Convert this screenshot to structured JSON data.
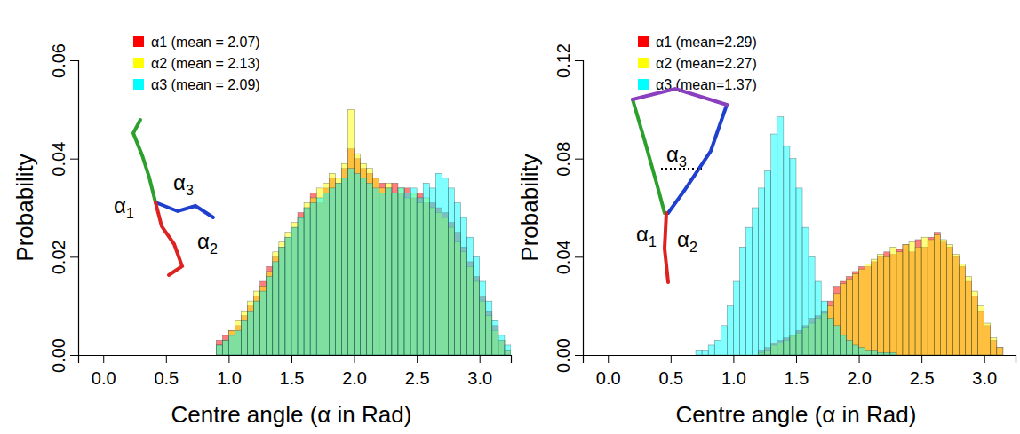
{
  "chart_data": [
    {
      "type": "histogram",
      "x_label": "Centre angle (α in Rad)",
      "y_label": "Probability",
      "legend": "top-left",
      "xlim": [
        -0.2,
        3.25
      ],
      "ylim": [
        0,
        0.06
      ],
      "xticks": [
        {
          "value": 0,
          "label": "0.0"
        },
        0.5,
        {
          "value": 1,
          "label": "1.0"
        },
        1.5,
        {
          "value": 2,
          "label": "2.0"
        },
        2.5,
        {
          "value": 3,
          "label": "3.0"
        }
      ],
      "yticks": [
        {
          "value": 0,
          "label": "0.00"
        },
        0.02,
        0.04,
        0.06
      ],
      "annotations": [
        "α1",
        "α2",
        "α3"
      ],
      "bins": [
        0.9,
        0.95,
        1,
        1.05,
        1.1,
        1.15,
        1.2,
        1.25,
        1.3,
        1.35,
        1.4,
        1.45,
        1.5,
        1.55,
        1.6,
        1.65,
        1.7,
        1.75,
        1.8,
        1.85,
        1.9,
        1.95,
        2,
        2.05,
        2.1,
        2.15,
        2.2,
        2.25,
        2.3,
        2.35,
        2.4,
        2.45,
        2.5,
        2.55,
        2.6,
        2.65,
        2.7,
        2.75,
        2.8,
        2.85,
        2.9,
        2.95,
        3,
        3.05,
        3.1,
        3.15,
        3.2,
        3.25
      ],
      "series": [
        {
          "name": "α1 (mean = 2.07)",
          "color": "#ff0000",
          "values": [
            0.003,
            0.004,
            0.005,
            0.006,
            0.008,
            0.01,
            0.012,
            0.015,
            0.018,
            0.02,
            0.022,
            0.024,
            0.026,
            0.029,
            0.03,
            0.033,
            0.031,
            0.034,
            0.036,
            0.035,
            0.038,
            0.042,
            0.04,
            0.038,
            0.037,
            0.036,
            0.035,
            0.034,
            0.035,
            0.033,
            0.034,
            0.032,
            0.033,
            0.031,
            0.031,
            0.03,
            0.029,
            0.027,
            0.025,
            0.022,
            0.019,
            0.016,
            0.012,
            0.009,
            0.006,
            0.003,
            0.001
          ]
        },
        {
          "name": "α2 (mean = 2.13)",
          "color": "#ffff00",
          "values": [
            0.002,
            0.003,
            0.005,
            0.007,
            0.009,
            0.011,
            0.013,
            0.014,
            0.017,
            0.021,
            0.023,
            0.025,
            0.027,
            0.028,
            0.031,
            0.032,
            0.034,
            0.035,
            0.037,
            0.036,
            0.039,
            0.05,
            0.041,
            0.039,
            0.038,
            0.036,
            0.034,
            0.035,
            0.033,
            0.034,
            0.032,
            0.033,
            0.031,
            0.032,
            0.03,
            0.029,
            0.028,
            0.026,
            0.023,
            0.021,
            0.018,
            0.015,
            0.011,
            0.008,
            0.005,
            0.003,
            0.001
          ]
        },
        {
          "name": "α3 (mean = 2.09)",
          "color": "#00ffff",
          "values": [
            0.002,
            0.003,
            0.004,
            0.005,
            0.007,
            0.009,
            0.011,
            0.013,
            0.016,
            0.019,
            0.022,
            0.024,
            0.026,
            0.028,
            0.03,
            0.031,
            0.032,
            0.033,
            0.034,
            0.035,
            0.036,
            0.038,
            0.037,
            0.036,
            0.035,
            0.034,
            0.033,
            0.034,
            0.033,
            0.034,
            0.033,
            0.034,
            0.032,
            0.035,
            0.034,
            0.037,
            0.036,
            0.034,
            0.031,
            0.028,
            0.024,
            0.02,
            0.015,
            0.011,
            0.007,
            0.004,
            0.002
          ]
        }
      ]
    },
    {
      "type": "histogram",
      "x_label": "Centre angle (α in Rad)",
      "y_label": "Probability",
      "legend": "top-left",
      "xlim": [
        -0.2,
        3.25
      ],
      "ylim": [
        0,
        0.12
      ],
      "xticks": [
        {
          "value": 0,
          "label": "0.0"
        },
        0.5,
        {
          "value": 1,
          "label": "1.0"
        },
        1.5,
        {
          "value": 2,
          "label": "2.0"
        },
        2.5,
        {
          "value": 3,
          "label": "3.0"
        }
      ],
      "yticks": [
        {
          "value": 0,
          "label": "0.00"
        },
        0.04,
        0.08,
        0.12
      ],
      "annotations": [
        "α1",
        "α2",
        "α3"
      ],
      "bins": [
        0.7,
        0.75,
        0.8,
        0.85,
        0.9,
        0.95,
        1,
        1.05,
        1.1,
        1.15,
        1.2,
        1.25,
        1.3,
        1.35,
        1.4,
        1.45,
        1.5,
        1.55,
        1.6,
        1.65,
        1.7,
        1.75,
        1.8,
        1.85,
        1.9,
        1.95,
        2,
        2.05,
        2.1,
        2.15,
        2.2,
        2.25,
        2.3,
        2.35,
        2.4,
        2.45,
        2.5,
        2.55,
        2.6,
        2.65,
        2.7,
        2.75,
        2.8,
        2.85,
        2.9,
        2.95,
        3,
        3.05,
        3.1,
        3.15
      ],
      "series": [
        {
          "name": "α1 (mean=2.29)",
          "color": "#ff0000",
          "values": [
            0,
            0,
            0,
            0,
            0,
            0,
            0,
            0,
            0,
            0,
            0.002,
            0.003,
            0.005,
            0.006,
            0.007,
            0.008,
            0.01,
            0.012,
            0.015,
            0.016,
            0.018,
            0.022,
            0.028,
            0.03,
            0.032,
            0.034,
            0.036,
            0.036,
            0.038,
            0.04,
            0.042,
            0.041,
            0.043,
            0.045,
            0.042,
            0.047,
            0.044,
            0.048,
            0.05,
            0.046,
            0.044,
            0.04,
            0.036,
            0.03,
            0.024,
            0.018,
            0.012,
            0.006,
            0.003
          ]
        },
        {
          "name": "α2 (mean=2.27)",
          "color": "#ffff00",
          "values": [
            0,
            0,
            0,
            0,
            0,
            0,
            0,
            0,
            0,
            0,
            0.001,
            0.002,
            0.004,
            0.005,
            0.006,
            0.008,
            0.009,
            0.011,
            0.013,
            0.015,
            0.017,
            0.02,
            0.025,
            0.029,
            0.031,
            0.033,
            0.035,
            0.037,
            0.039,
            0.041,
            0.04,
            0.044,
            0.042,
            0.045,
            0.046,
            0.044,
            0.048,
            0.047,
            0.049,
            0.047,
            0.045,
            0.041,
            0.037,
            0.032,
            0.026,
            0.02,
            0.013,
            0.007,
            0.003
          ]
        },
        {
          "name": "α3 (mean=1.37)",
          "color": "#00ffff",
          "values": [
            0.002,
            0.002,
            0.004,
            0.006,
            0.012,
            0.02,
            0.03,
            0.044,
            0.052,
            0.06,
            0.068,
            0.075,
            0.09,
            0.097,
            0.085,
            0.08,
            0.068,
            0.052,
            0.04,
            0.03,
            0.022,
            0.015,
            0.012,
            0.008,
            0.006,
            0.004,
            0.003,
            0.002,
            0.002,
            0.001,
            0.001,
            0.001,
            0,
            0,
            0,
            0,
            0,
            0,
            0,
            0,
            0,
            0,
            0,
            0,
            0,
            0,
            0,
            0,
            0
          ]
        }
      ]
    }
  ]
}
